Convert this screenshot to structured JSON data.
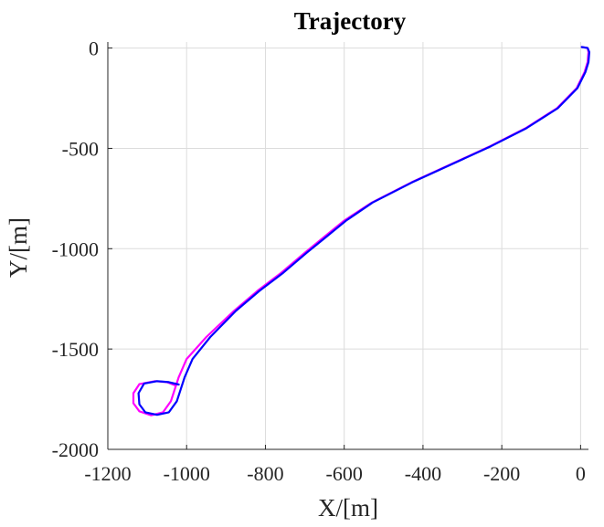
{
  "chart_data": {
    "type": "line",
    "title": "Trajectory",
    "xlabel": "X/[m]",
    "ylabel": "Y/[m]",
    "xlim": [
      -1200,
      20
    ],
    "ylim": [
      -2000,
      30
    ],
    "xticks": [
      -1200,
      -1000,
      -800,
      -600,
      -400,
      -200,
      0
    ],
    "yticks": [
      -2000,
      -1500,
      -1000,
      -500,
      0
    ],
    "xtick_labels": [
      "-1200",
      "-1000",
      "-800",
      "-600",
      "-400",
      "-200",
      "0"
    ],
    "ytick_labels": [
      "-2000",
      "-1500",
      "-1000",
      "-500",
      "0"
    ],
    "grid": true,
    "series": [
      {
        "color": "#ff00ff",
        "points": [
          [
            3,
            5
          ],
          [
            18,
            0
          ],
          [
            20,
            -20
          ],
          [
            18,
            -70
          ],
          [
            10,
            -120
          ],
          [
            -10,
            -200
          ],
          [
            -60,
            -300
          ],
          [
            -140,
            -400
          ],
          [
            -230,
            -490
          ],
          [
            -330,
            -580
          ],
          [
            -430,
            -670
          ],
          [
            -530,
            -770
          ],
          [
            -600,
            -860
          ],
          [
            -650,
            -940
          ],
          [
            -700,
            -1020
          ],
          [
            -760,
            -1120
          ],
          [
            -820,
            -1210
          ],
          [
            -880,
            -1310
          ],
          [
            -950,
            -1440
          ],
          [
            -1000,
            -1550
          ],
          [
            -1020,
            -1640
          ],
          [
            -1040,
            -1760
          ],
          [
            -1060,
            -1815
          ],
          [
            -1090,
            -1830
          ],
          [
            -1120,
            -1810
          ],
          [
            -1135,
            -1770
          ],
          [
            -1135,
            -1720
          ],
          [
            -1120,
            -1675
          ],
          [
            -1080,
            -1660
          ],
          [
            -1050,
            -1665
          ],
          [
            -1030,
            -1680
          ]
        ]
      },
      {
        "color": "#0000ff",
        "points": [
          [
            3,
            5
          ],
          [
            18,
            0
          ],
          [
            22,
            -20
          ],
          [
            20,
            -70
          ],
          [
            12,
            -120
          ],
          [
            -8,
            -200
          ],
          [
            -58,
            -300
          ],
          [
            -138,
            -400
          ],
          [
            -228,
            -490
          ],
          [
            -328,
            -580
          ],
          [
            -428,
            -670
          ],
          [
            -528,
            -770
          ],
          [
            -595,
            -860
          ],
          [
            -645,
            -940
          ],
          [
            -695,
            -1020
          ],
          [
            -755,
            -1120
          ],
          [
            -815,
            -1210
          ],
          [
            -875,
            -1310
          ],
          [
            -940,
            -1440
          ],
          [
            -985,
            -1550
          ],
          [
            -1005,
            -1640
          ],
          [
            -1025,
            -1760
          ],
          [
            -1045,
            -1815
          ],
          [
            -1075,
            -1828
          ],
          [
            -1105,
            -1815
          ],
          [
            -1120,
            -1775
          ],
          [
            -1122,
            -1720
          ],
          [
            -1108,
            -1672
          ],
          [
            -1075,
            -1660
          ],
          [
            -1045,
            -1665
          ],
          [
            -1020,
            -1677
          ]
        ]
      }
    ]
  }
}
